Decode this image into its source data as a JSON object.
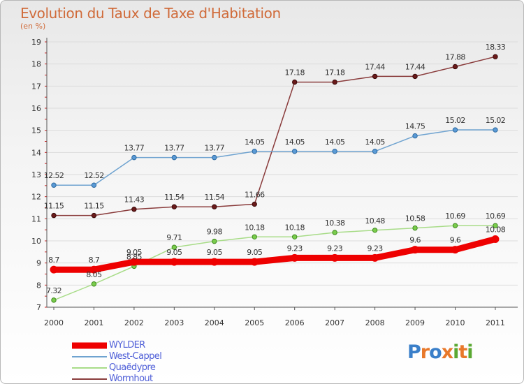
{
  "title": "Evolution du Taux de Taxe d'Habitation",
  "subtitle": "(en %)",
  "logo": {
    "letters": [
      "P",
      "r",
      "o",
      "x",
      "i",
      "t",
      "i"
    ],
    "colors": [
      "#3a7fc9",
      "#e8782a",
      "#3a7fc9",
      "#e8782a",
      "#5aa832",
      "#e8782a",
      "#5aa832"
    ]
  },
  "chart_data": {
    "type": "line",
    "title": "Evolution du Taux de Taxe d'Habitation",
    "ylabel": "(en %)",
    "xlabel": "",
    "x": [
      "2000",
      "2001",
      "2002",
      "2003",
      "2004",
      "2005",
      "2006",
      "2007",
      "2008",
      "2009",
      "2010",
      "2011"
    ],
    "ylim": [
      7,
      19
    ],
    "yticks": [
      "7",
      "8",
      "9",
      "10",
      "11",
      "12",
      "13",
      "14",
      "15",
      "16",
      "17",
      "18",
      "19"
    ],
    "grid": "horizontal",
    "legend": "bottom-left",
    "series": [
      {
        "name": "WYLDER",
        "color": "#ee0000",
        "values": [
          8.7,
          8.7,
          9.05,
          9.05,
          9.05,
          9.05,
          9.23,
          9.23,
          9.23,
          9.6,
          9.6,
          10.08
        ],
        "labels": [
          "8.7",
          "8.7",
          "9.05",
          "9.05",
          "9.05",
          "9.05",
          "9.23",
          "9.23",
          "9.23",
          "9.6",
          "9.6",
          "10.08"
        ]
      },
      {
        "name": "West-Cappel",
        "color": "#6fa3d0",
        "values": [
          12.52,
          12.52,
          13.77,
          13.77,
          13.77,
          14.05,
          14.05,
          14.05,
          14.05,
          14.75,
          15.02,
          15.02
        ],
        "labels": [
          "12.52",
          "12.52",
          "13.77",
          "13.77",
          "13.77",
          "14.05",
          "14.05",
          "14.05",
          "14.05",
          "14.75",
          "15.02",
          "15.02"
        ]
      },
      {
        "name": "Quaëdypre",
        "color": "#a8dc88",
        "values": [
          7.32,
          8.05,
          8.85,
          9.71,
          9.98,
          10.18,
          10.18,
          10.38,
          10.48,
          10.58,
          10.69,
          10.69
        ],
        "labels": [
          "7.32",
          "8.05",
          "8.85",
          "9.71",
          "9.98",
          "10.18",
          "10.18",
          "10.38",
          "10.48",
          "10.58",
          "10.69",
          "10.69"
        ]
      },
      {
        "name": "Wormhout",
        "color": "#8a3c3c",
        "values": [
          11.15,
          11.15,
          11.43,
          11.54,
          11.54,
          11.66,
          17.18,
          17.18,
          17.44,
          17.44,
          17.88,
          18.33
        ],
        "labels": [
          "11.15",
          "11.15",
          "11.43",
          "11.54",
          "11.54",
          "11.66",
          "17.18",
          "17.18",
          "17.44",
          "17.44",
          "17.88",
          "18.33"
        ]
      }
    ]
  }
}
